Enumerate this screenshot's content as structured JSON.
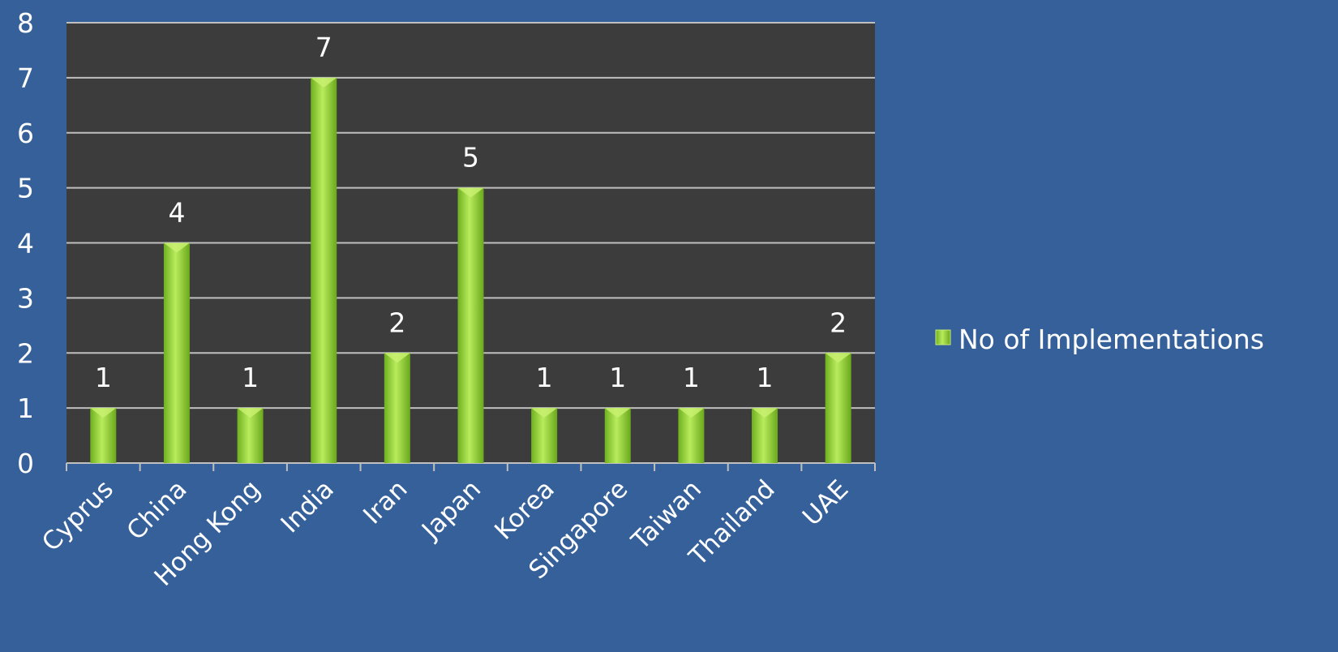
{
  "chart_data": {
    "type": "bar",
    "categories": [
      "Cyprus",
      "China",
      "Hong Kong",
      "India",
      "Iran",
      "Japan",
      "Korea",
      "Singapore",
      "Taiwan",
      "Thailand",
      "UAE"
    ],
    "series": [
      {
        "name": "No of Implementations",
        "values": [
          1,
          4,
          1,
          7,
          2,
          5,
          1,
          1,
          1,
          1,
          2
        ]
      }
    ],
    "title": "",
    "xlabel": "",
    "ylabel": "",
    "ylim": [
      0,
      8
    ],
    "yticks": [
      "0",
      "1",
      "2",
      "3",
      "4",
      "5",
      "6",
      "7",
      "8"
    ],
    "data_labels": [
      "1",
      "4",
      "1",
      "7",
      "2",
      "5",
      "1",
      "1",
      "1",
      "1",
      "2"
    ],
    "grid": true,
    "legend_position": "right",
    "colors": {
      "background": "#35609a",
      "plot_area": "#3c3c3c",
      "bar": "#8fd032",
      "bar_highlight": "#c8f070",
      "gridline": "#bfbfbf",
      "text": "#ffffff"
    }
  }
}
